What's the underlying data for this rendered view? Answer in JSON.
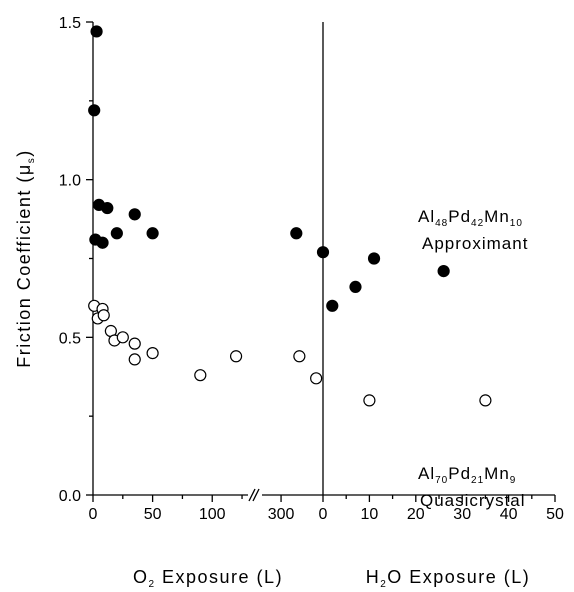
{
  "chart_data": {
    "type": "scatter",
    "ylabel": "Friction Coefficient (μs)",
    "ylim": [
      0,
      1.5
    ],
    "y_ticks": [
      "0.0",
      "0.5",
      "1.0",
      "1.5"
    ],
    "grid": false,
    "panels": [
      {
        "name": "O2 exposure",
        "xlabel": "O2 Exposure (L)",
        "segments": [
          {
            "xlim": [
              0,
              130
            ],
            "x_ticks": [
              0,
              50,
              100,
              150
            ],
            "x_tick_labels": [
              "0",
              "50",
              "100",
              ""
            ]
          },
          {
            "xlim": [
              275,
              355
            ],
            "x_ticks": [
              300
            ],
            "x_tick_labels": [
              "300"
            ]
          }
        ]
      },
      {
        "name": "H2O exposure",
        "xlabel": "H2O Exposure (L)",
        "xlim": [
          0,
          50
        ],
        "x_ticks": [
          0,
          10,
          20,
          30,
          40,
          50
        ],
        "x_tick_labels": [
          "0",
          "10",
          "20",
          "30",
          "40",
          "50"
        ]
      }
    ],
    "series": [
      {
        "marker": "filled-circle",
        "label_parts": [
          "Al",
          "48",
          "Pd",
          "42",
          "Mn",
          "10"
        ],
        "label_line2": "Approximant",
        "o2_points": [
          {
            "x": 1,
            "y": 1.22
          },
          {
            "x": 2,
            "y": 0.81
          },
          {
            "x": 3,
            "y": 1.47
          },
          {
            "x": 5,
            "y": 0.92
          },
          {
            "x": 8,
            "y": 0.8
          },
          {
            "x": 12,
            "y": 0.91
          },
          {
            "x": 20,
            "y": 0.83
          },
          {
            "x": 35,
            "y": 0.89
          },
          {
            "x": 50,
            "y": 0.83
          },
          {
            "x": 320,
            "y": 0.83
          }
        ],
        "h2o_points": [
          {
            "x": 0,
            "y": 0.77
          },
          {
            "x": 2,
            "y": 0.6
          },
          {
            "x": 7,
            "y": 0.66
          },
          {
            "x": 11,
            "y": 0.75
          },
          {
            "x": 26,
            "y": 0.71
          }
        ]
      },
      {
        "marker": "open-circle",
        "label_parts": [
          "Al",
          "70",
          "Pd",
          "21",
          "Mn",
          "9"
        ],
        "label_line2": "Quasicrystal",
        "o2_points": [
          {
            "x": 1,
            "y": 0.6
          },
          {
            "x": 4,
            "y": 0.56
          },
          {
            "x": 8,
            "y": 0.59
          },
          {
            "x": 9,
            "y": 0.57
          },
          {
            "x": 15,
            "y": 0.52
          },
          {
            "x": 18,
            "y": 0.49
          },
          {
            "x": 25,
            "y": 0.5
          },
          {
            "x": 35,
            "y": 0.48
          },
          {
            "x": 35,
            "y": 0.43
          },
          {
            "x": 50,
            "y": 0.45
          },
          {
            "x": 90,
            "y": 0.38
          },
          {
            "x": 120,
            "y": 0.44
          },
          {
            "x": 324,
            "y": 0.44
          },
          {
            "x": 346,
            "y": 0.37
          }
        ],
        "h2o_points": [
          {
            "x": 10,
            "y": 0.3
          },
          {
            "x": 35,
            "y": 0.3
          }
        ]
      }
    ]
  }
}
